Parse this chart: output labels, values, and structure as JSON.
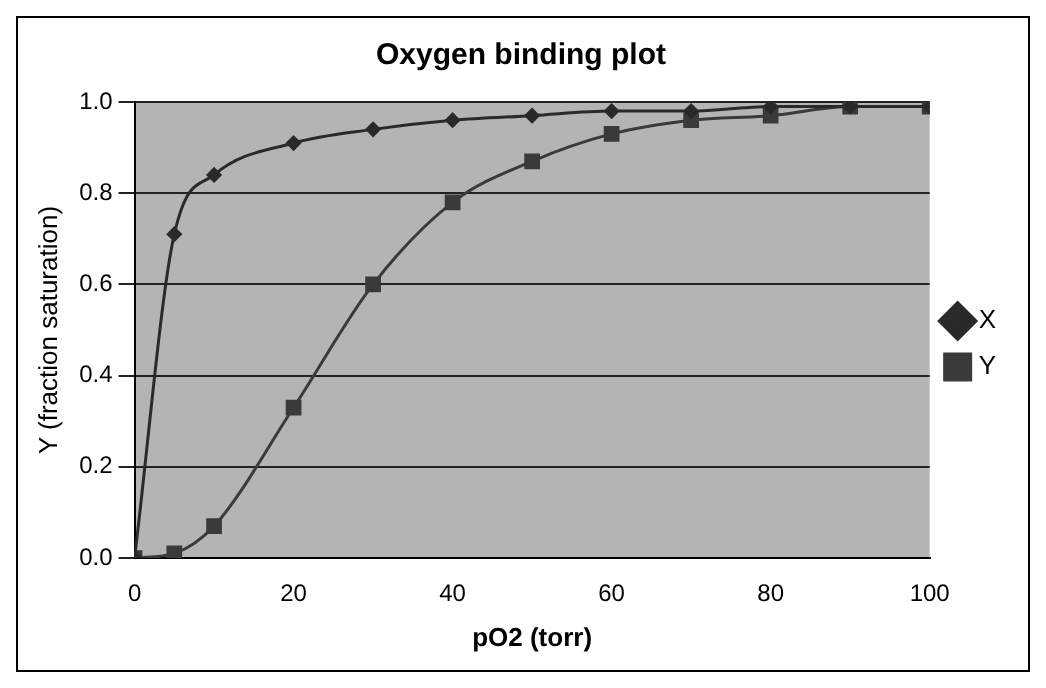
{
  "chart_data": {
    "type": "line",
    "title": "Oxygen binding plot",
    "xlabel": "pO2 (torr)",
    "ylabel": "Y (fraction saturation)",
    "xlim": [
      0,
      100
    ],
    "xticks": [
      0,
      20,
      40,
      60,
      80,
      100
    ],
    "ylim": [
      0,
      1
    ],
    "yticks": [
      {
        "value": 0,
        "label": "0.0"
      },
      {
        "value": 0.2,
        "label": "0.2"
      },
      {
        "value": 0.4,
        "label": "0.4"
      },
      {
        "value": 0.6,
        "label": "0.6"
      },
      {
        "value": 0.8,
        "label": "0.8"
      },
      {
        "value": 1,
        "label": "1.0"
      }
    ],
    "x": [
      0,
      5,
      10,
      20,
      30,
      40,
      50,
      60,
      70,
      80,
      90,
      100
    ],
    "series": [
      {
        "name": "X",
        "color": "#2a2a2a",
        "marker": "diamond",
        "values": [
          0,
          0.71,
          0.84,
          0.91,
          0.94,
          0.96,
          0.97,
          0.98,
          0.98,
          0.99,
          0.99,
          0.99
        ]
      },
      {
        "name": "Y",
        "color": "#3a3a3a",
        "marker": "square",
        "values": [
          0,
          0.01,
          0.07,
          0.33,
          0.6,
          0.78,
          0.87,
          0.93,
          0.96,
          0.97,
          0.99,
          0.99
        ]
      }
    ],
    "grid": "y",
    "legend": "right",
    "line_style": "solid"
  }
}
